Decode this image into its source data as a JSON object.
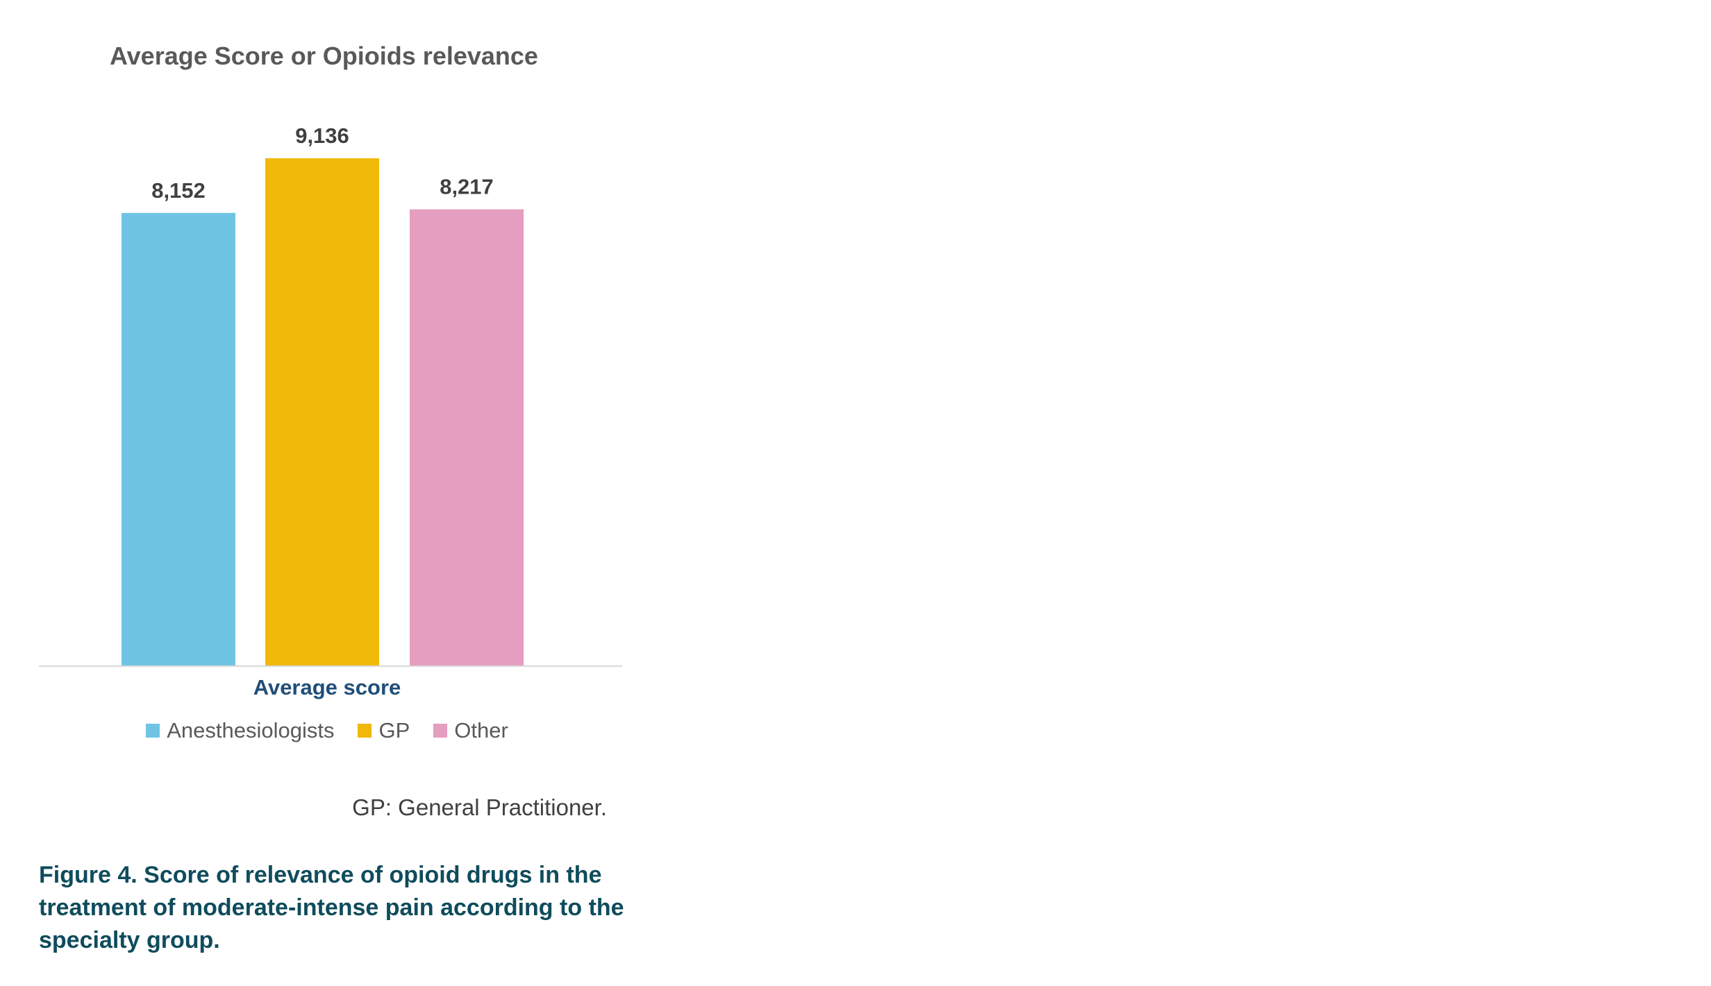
{
  "chart_data": {
    "type": "bar",
    "title": "Average Score or Opioids relevance",
    "categories": [
      "Average score"
    ],
    "series": [
      {
        "name": "Anesthesiologists",
        "values": [
          8.152
        ],
        "label": "8,152",
        "color": "#70c4e3"
      },
      {
        "name": "GP",
        "values": [
          9.136
        ],
        "label": "9,136",
        "color": "#f0b808"
      },
      {
        "name": "Other",
        "values": [
          8.217
        ],
        "label": "8,217",
        "color": "#e59ebf"
      }
    ],
    "xlabel": "",
    "ylabel": "",
    "ylim": [
      0,
      10
    ],
    "grid": false,
    "legend": "bottom"
  },
  "footnote": "GP: General Practitioner.",
  "caption": "Figure 4. Score of relevance of opioid drugs in the treatment of moderate-intense pain according to the specialty group.",
  "colors": {
    "title": "#595959",
    "category_label": "#1f4e79",
    "caption": "#0f4c5c",
    "axis": "#d9d9d9"
  }
}
